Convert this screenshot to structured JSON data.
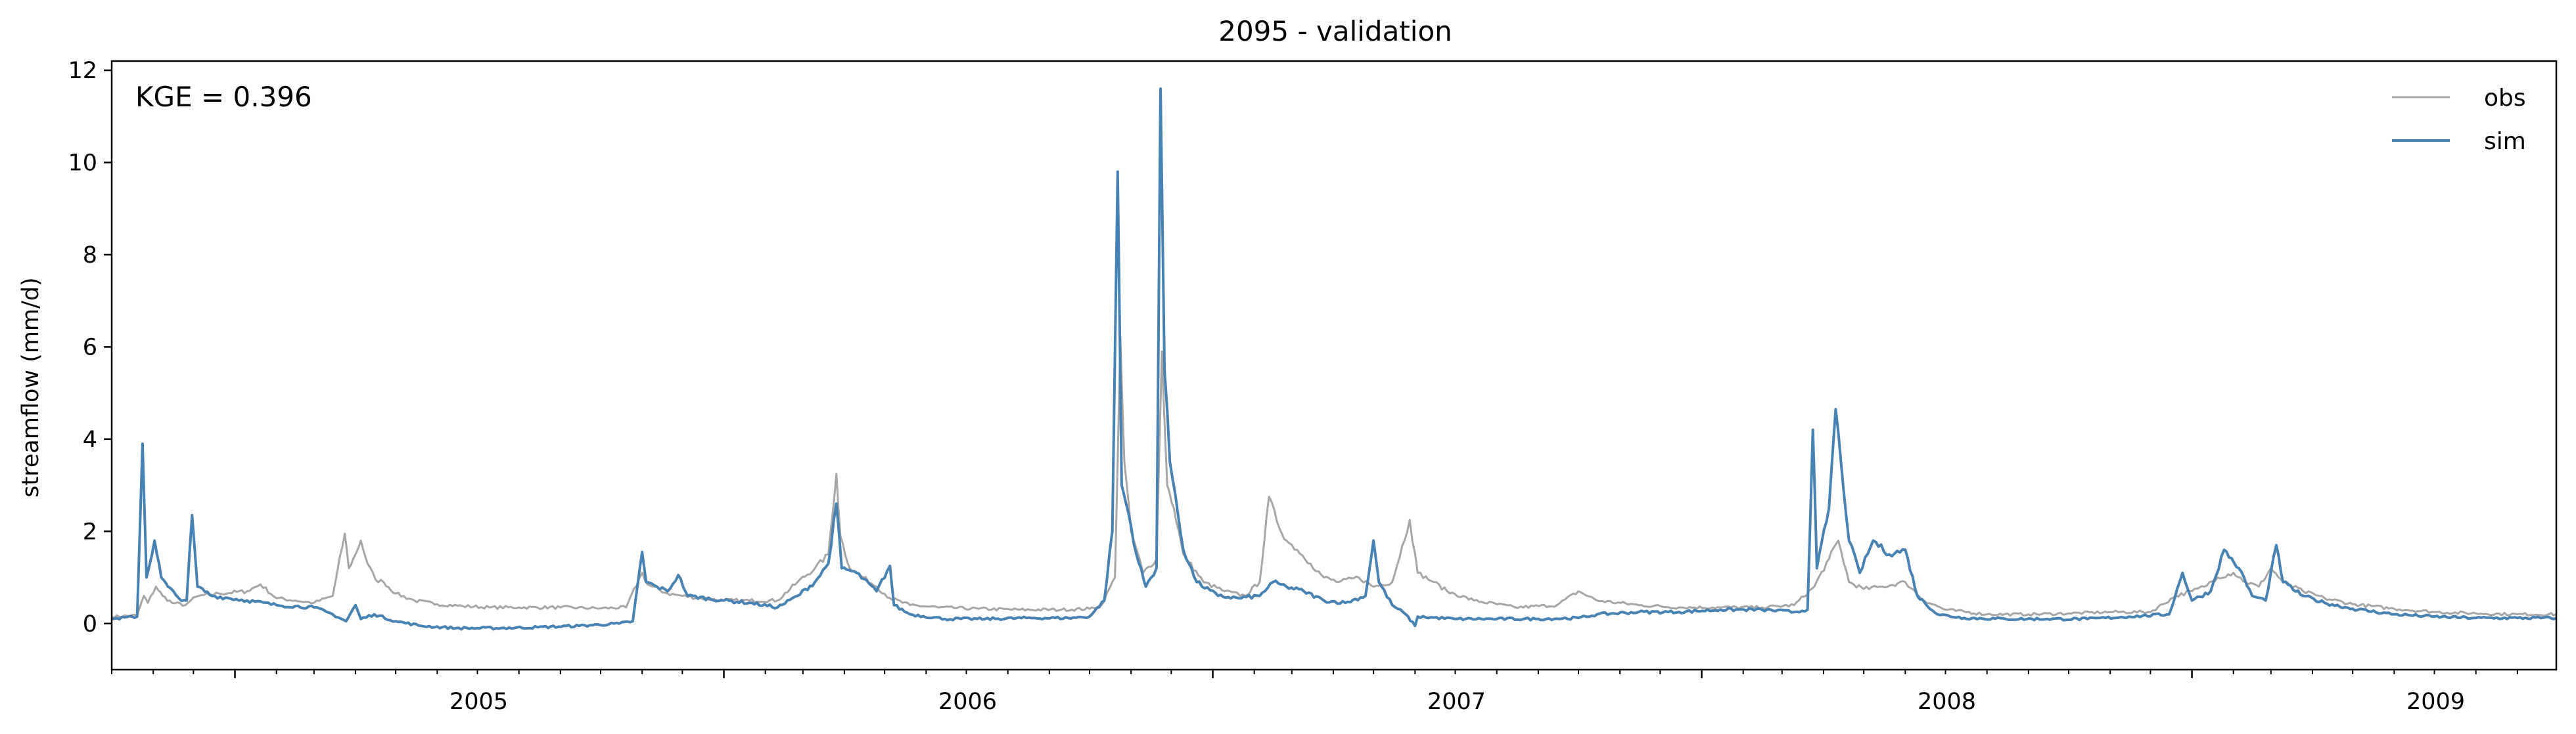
{
  "chart_data": {
    "type": "line",
    "title": "2095 - validation",
    "xlabel": "",
    "ylabel": "streamflow (mm/d)",
    "annotation": "KGE = 0.396",
    "xlim": [
      "2004-10-01",
      "2009-09-30"
    ],
    "ylim": [
      -1,
      12.2
    ],
    "yticks": [
      0,
      2,
      4,
      6,
      8,
      10,
      12
    ],
    "xticks": [
      {
        "label": "2005",
        "date": "2005-01-01"
      },
      {
        "label": "2006",
        "date": "2006-01-01"
      },
      {
        "label": "2007",
        "date": "2007-01-01"
      },
      {
        "label": "2008",
        "date": "2008-01-01"
      },
      {
        "label": "2009",
        "date": "2009-01-01"
      }
    ],
    "legend_position": "top-right",
    "grid": false,
    "series": [
      {
        "name": "obs",
        "color": "#a6a6a6",
        "points": [
          [
            "2004-10-01",
            0.15
          ],
          [
            "2004-10-20",
            0.18
          ],
          [
            "2004-10-25",
            0.6
          ],
          [
            "2004-10-28",
            0.45
          ],
          [
            "2004-11-03",
            0.8
          ],
          [
            "2004-11-08",
            0.6
          ],
          [
            "2004-11-15",
            0.45
          ],
          [
            "2004-11-25",
            0.4
          ],
          [
            "2004-11-29",
            0.5
          ],
          [
            "2004-12-05",
            0.6
          ],
          [
            "2004-12-20",
            0.65
          ],
          [
            "2005-01-10",
            0.7
          ],
          [
            "2005-01-20",
            0.85
          ],
          [
            "2005-02-01",
            0.55
          ],
          [
            "2005-02-15",
            0.5
          ],
          [
            "2005-03-01",
            0.45
          ],
          [
            "2005-03-15",
            0.6
          ],
          [
            "2005-03-24",
            1.95
          ],
          [
            "2005-03-27",
            1.2
          ],
          [
            "2005-04-01",
            1.5
          ],
          [
            "2005-04-05",
            1.8
          ],
          [
            "2005-04-10",
            1.3
          ],
          [
            "2005-04-16",
            0.95
          ],
          [
            "2005-04-22",
            0.9
          ],
          [
            "2005-05-01",
            0.65
          ],
          [
            "2005-05-15",
            0.5
          ],
          [
            "2005-06-01",
            0.42
          ],
          [
            "2005-06-20",
            0.38
          ],
          [
            "2005-07-10",
            0.35
          ],
          [
            "2005-08-01",
            0.35
          ],
          [
            "2005-09-01",
            0.35
          ],
          [
            "2005-10-01",
            0.33
          ],
          [
            "2005-10-20",
            0.35
          ],
          [
            "2005-11-01",
            1.1
          ],
          [
            "2005-11-05",
            0.85
          ],
          [
            "2005-11-20",
            0.65
          ],
          [
            "2005-12-01",
            0.6
          ],
          [
            "2005-12-15",
            0.55
          ],
          [
            "2006-01-01",
            0.5
          ],
          [
            "2006-01-20",
            0.5
          ],
          [
            "2006-02-10",
            0.5
          ],
          [
            "2006-02-25",
            0.9
          ],
          [
            "2006-03-10",
            1.2
          ],
          [
            "2006-03-20",
            1.5
          ],
          [
            "2006-03-26",
            3.25
          ],
          [
            "2006-03-29",
            1.9
          ],
          [
            "2006-04-05",
            1.2
          ],
          [
            "2006-04-15",
            1.0
          ],
          [
            "2006-04-25",
            0.8
          ],
          [
            "2006-05-05",
            0.55
          ],
          [
            "2006-05-20",
            0.4
          ],
          [
            "2006-06-10",
            0.35
          ],
          [
            "2006-07-10",
            0.32
          ],
          [
            "2006-08-10",
            0.3
          ],
          [
            "2006-09-10",
            0.3
          ],
          [
            "2006-10-01",
            0.32
          ],
          [
            "2006-10-10",
            0.4
          ],
          [
            "2006-10-20",
            1.0
          ],
          [
            "2006-10-24",
            6.2
          ],
          [
            "2006-10-27",
            3.5
          ],
          [
            "2006-11-01",
            2.0
          ],
          [
            "2006-11-10",
            1.1
          ],
          [
            "2006-11-20",
            1.4
          ],
          [
            "2006-11-24",
            5.9
          ],
          [
            "2006-11-28",
            3.0
          ],
          [
            "2006-12-03",
            2.5
          ],
          [
            "2006-12-10",
            1.5
          ],
          [
            "2006-12-25",
            0.9
          ],
          [
            "2007-01-10",
            0.7
          ],
          [
            "2007-01-25",
            0.6
          ],
          [
            "2007-02-05",
            0.9
          ],
          [
            "2007-02-12",
            2.75
          ],
          [
            "2007-02-18",
            2.2
          ],
          [
            "2007-02-25",
            1.8
          ],
          [
            "2007-03-05",
            1.6
          ],
          [
            "2007-03-15",
            1.3
          ],
          [
            "2007-03-25",
            1.0
          ],
          [
            "2007-04-05",
            0.9
          ],
          [
            "2007-04-20",
            1.0
          ],
          [
            "2007-05-01",
            0.8
          ],
          [
            "2007-05-15",
            0.9
          ],
          [
            "2007-05-28",
            2.25
          ],
          [
            "2007-06-03",
            1.1
          ],
          [
            "2007-06-15",
            0.9
          ],
          [
            "2007-06-25",
            0.7
          ],
          [
            "2007-07-15",
            0.5
          ],
          [
            "2007-08-15",
            0.35
          ],
          [
            "2007-09-15",
            0.4
          ],
          [
            "2007-10-01",
            0.7
          ],
          [
            "2007-10-15",
            0.5
          ],
          [
            "2007-11-15",
            0.4
          ],
          [
            "2007-12-15",
            0.35
          ],
          [
            "2008-01-15",
            0.35
          ],
          [
            "2008-02-15",
            0.35
          ],
          [
            "2008-03-10",
            0.4
          ],
          [
            "2008-03-25",
            0.8
          ],
          [
            "2008-04-05",
            1.4
          ],
          [
            "2008-04-12",
            1.8
          ],
          [
            "2008-04-20",
            0.9
          ],
          [
            "2008-05-01",
            0.75
          ],
          [
            "2008-05-15",
            0.8
          ],
          [
            "2008-06-01",
            0.9
          ],
          [
            "2008-06-15",
            0.5
          ],
          [
            "2008-07-01",
            0.3
          ],
          [
            "2008-08-01",
            0.2
          ],
          [
            "2008-09-01",
            0.2
          ],
          [
            "2008-10-01",
            0.22
          ],
          [
            "2008-11-01",
            0.25
          ],
          [
            "2008-12-01",
            0.25
          ],
          [
            "2008-12-20",
            0.6
          ],
          [
            "2009-01-01",
            0.7
          ],
          [
            "2009-01-10",
            0.8
          ],
          [
            "2009-01-20",
            1.0
          ],
          [
            "2009-02-01",
            1.1
          ],
          [
            "2009-02-10",
            0.9
          ],
          [
            "2009-02-20",
            0.8
          ],
          [
            "2009-03-01",
            1.2
          ],
          [
            "2009-03-10",
            0.9
          ],
          [
            "2009-03-25",
            0.7
          ],
          [
            "2009-04-10",
            0.55
          ],
          [
            "2009-05-01",
            0.42
          ],
          [
            "2009-06-01",
            0.32
          ],
          [
            "2009-07-01",
            0.25
          ],
          [
            "2009-08-01",
            0.22
          ],
          [
            "2009-09-01",
            0.2
          ],
          [
            "2009-09-30",
            0.2
          ]
        ]
      },
      {
        "name": "sim",
        "color": "#4682b4",
        "points": [
          [
            "2004-10-01",
            0.1
          ],
          [
            "2004-10-20",
            0.15
          ],
          [
            "2004-10-24",
            3.9
          ],
          [
            "2004-10-27",
            1.0
          ],
          [
            "2004-11-02",
            1.8
          ],
          [
            "2004-11-07",
            1.0
          ],
          [
            "2004-11-12",
            0.8
          ],
          [
            "2004-11-20",
            0.55
          ],
          [
            "2004-11-26",
            0.5
          ],
          [
            "2004-11-30",
            2.35
          ],
          [
            "2004-12-04",
            0.8
          ],
          [
            "2004-12-15",
            0.6
          ],
          [
            "2005-01-10",
            0.5
          ],
          [
            "2005-02-01",
            0.4
          ],
          [
            "2005-03-01",
            0.35
          ],
          [
            "2005-03-15",
            0.2
          ],
          [
            "2005-03-25",
            0.05
          ],
          [
            "2005-04-01",
            0.4
          ],
          [
            "2005-04-05",
            0.1
          ],
          [
            "2005-04-15",
            0.2
          ],
          [
            "2005-05-01",
            0.05
          ],
          [
            "2005-05-20",
            -0.05
          ],
          [
            "2005-06-15",
            -0.1
          ],
          [
            "2005-07-15",
            -0.1
          ],
          [
            "2005-08-15",
            -0.08
          ],
          [
            "2005-09-15",
            -0.05
          ],
          [
            "2005-10-15",
            0.0
          ],
          [
            "2005-10-25",
            0.05
          ],
          [
            "2005-11-01",
            1.55
          ],
          [
            "2005-11-04",
            0.9
          ],
          [
            "2005-11-12",
            0.8
          ],
          [
            "2005-11-20",
            0.7
          ],
          [
            "2005-11-28",
            1.05
          ],
          [
            "2005-12-05",
            0.6
          ],
          [
            "2006-01-01",
            0.5
          ],
          [
            "2006-01-20",
            0.45
          ],
          [
            "2006-02-10",
            0.35
          ],
          [
            "2006-02-25",
            0.6
          ],
          [
            "2006-03-10",
            0.9
          ],
          [
            "2006-03-20",
            1.3
          ],
          [
            "2006-03-26",
            2.6
          ],
          [
            "2006-03-30",
            1.2
          ],
          [
            "2006-04-10",
            1.1
          ],
          [
            "2006-04-25",
            0.7
          ],
          [
            "2006-05-05",
            1.25
          ],
          [
            "2006-05-08",
            0.4
          ],
          [
            "2006-05-20",
            0.2
          ],
          [
            "2006-06-15",
            0.1
          ],
          [
            "2006-07-15",
            0.1
          ],
          [
            "2006-08-15",
            0.12
          ],
          [
            "2006-09-15",
            0.12
          ],
          [
            "2006-10-01",
            0.15
          ],
          [
            "2006-10-12",
            0.5
          ],
          [
            "2006-10-18",
            2.0
          ],
          [
            "2006-10-22",
            9.8
          ],
          [
            "2006-10-25",
            3.0
          ],
          [
            "2006-10-30",
            2.4
          ],
          [
            "2006-11-05",
            1.5
          ],
          [
            "2006-11-12",
            0.8
          ],
          [
            "2006-11-20",
            1.2
          ],
          [
            "2006-11-23",
            11.6
          ],
          [
            "2006-11-26",
            5.5
          ],
          [
            "2006-11-30",
            3.5
          ],
          [
            "2006-12-04",
            2.8
          ],
          [
            "2006-12-10",
            1.6
          ],
          [
            "2006-12-20",
            0.9
          ],
          [
            "2007-01-05",
            0.6
          ],
          [
            "2007-01-20",
            0.55
          ],
          [
            "2007-02-05",
            0.6
          ],
          [
            "2007-02-15",
            0.9
          ],
          [
            "2007-02-25",
            0.8
          ],
          [
            "2007-03-10",
            0.7
          ],
          [
            "2007-03-25",
            0.5
          ],
          [
            "2007-04-10",
            0.45
          ],
          [
            "2007-04-25",
            0.6
          ],
          [
            "2007-05-01",
            1.8
          ],
          [
            "2007-05-05",
            0.9
          ],
          [
            "2007-05-15",
            0.4
          ],
          [
            "2007-05-25",
            0.2
          ],
          [
            "2007-06-01",
            -0.05
          ],
          [
            "2007-06-03",
            0.15
          ],
          [
            "2007-07-01",
            0.1
          ],
          [
            "2007-08-01",
            0.1
          ],
          [
            "2007-09-01",
            0.1
          ],
          [
            "2007-10-01",
            0.12
          ],
          [
            "2007-10-15",
            0.2
          ],
          [
            "2007-11-15",
            0.25
          ],
          [
            "2007-12-15",
            0.25
          ],
          [
            "2008-01-15",
            0.3
          ],
          [
            "2008-02-15",
            0.3
          ],
          [
            "2008-03-10",
            0.25
          ],
          [
            "2008-03-20",
            0.3
          ],
          [
            "2008-03-24",
            4.2
          ],
          [
            "2008-03-27",
            1.2
          ],
          [
            "2008-04-05",
            2.5
          ],
          [
            "2008-04-10",
            4.65
          ],
          [
            "2008-04-14",
            3.5
          ],
          [
            "2008-04-20",
            1.8
          ],
          [
            "2008-04-28",
            1.1
          ],
          [
            "2008-05-08",
            1.8
          ],
          [
            "2008-05-20",
            1.5
          ],
          [
            "2008-06-01",
            1.6
          ],
          [
            "2008-06-10",
            0.6
          ],
          [
            "2008-06-25",
            0.2
          ],
          [
            "2008-07-15",
            0.12
          ],
          [
            "2008-08-15",
            0.1
          ],
          [
            "2008-09-15",
            0.1
          ],
          [
            "2008-10-15",
            0.1
          ],
          [
            "2008-11-15",
            0.15
          ],
          [
            "2008-12-15",
            0.2
          ],
          [
            "2008-12-25",
            1.1
          ],
          [
            "2009-01-01",
            0.5
          ],
          [
            "2009-01-15",
            0.7
          ],
          [
            "2009-01-25",
            1.6
          ],
          [
            "2009-02-05",
            1.2
          ],
          [
            "2009-02-15",
            0.6
          ],
          [
            "2009-02-25",
            0.5
          ],
          [
            "2009-03-05",
            1.7
          ],
          [
            "2009-03-10",
            0.9
          ],
          [
            "2009-03-25",
            0.6
          ],
          [
            "2009-04-10",
            0.45
          ],
          [
            "2009-05-01",
            0.32
          ],
          [
            "2009-06-01",
            0.2
          ],
          [
            "2009-07-01",
            0.15
          ],
          [
            "2009-08-01",
            0.12
          ],
          [
            "2009-09-01",
            0.12
          ],
          [
            "2009-09-30",
            0.12
          ]
        ]
      }
    ]
  }
}
